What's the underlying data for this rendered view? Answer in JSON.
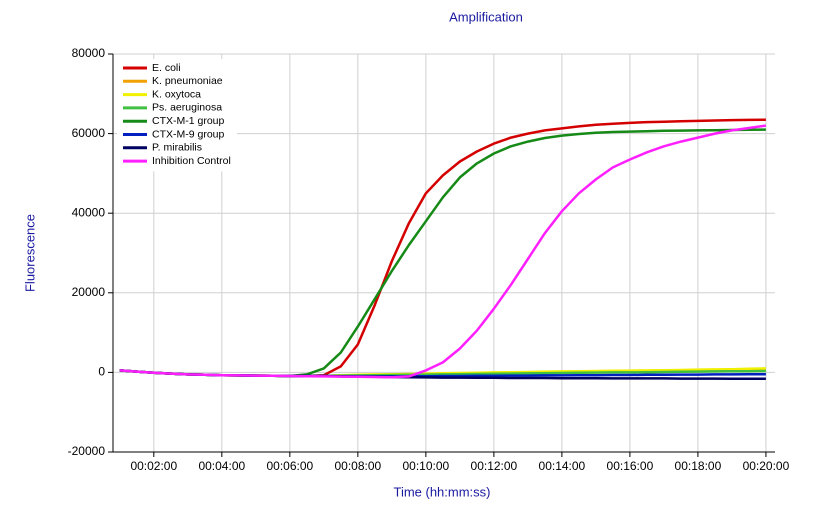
{
  "chart_data": {
    "type": "line",
    "title": "Amplification",
    "x_label": "Time (hh:mm:ss)",
    "y_label": "Fluorescence",
    "x": [
      60,
      90,
      120,
      150,
      180,
      210,
      240,
      270,
      300,
      330,
      360,
      390,
      420,
      450,
      480,
      510,
      540,
      570,
      600,
      630,
      660,
      690,
      720,
      750,
      780,
      810,
      840,
      870,
      900,
      930,
      960,
      990,
      1020,
      1050,
      1080,
      1110,
      1140,
      1170,
      1200
    ],
    "xlim": [
      48,
      1216
    ],
    "xticks": [
      {
        "value": 120,
        "label": "00:02:00"
      },
      {
        "value": 240,
        "label": "00:04:00"
      },
      {
        "value": 360,
        "label": "00:06:00"
      },
      {
        "value": 480,
        "label": "00:08:00"
      },
      {
        "value": 600,
        "label": "00:10:00"
      },
      {
        "value": 720,
        "label": "00:12:00"
      },
      {
        "value": 840,
        "label": "00:14:00"
      },
      {
        "value": 960,
        "label": "00:16:00"
      },
      {
        "value": 1080,
        "label": "00:18:00"
      },
      {
        "value": 1200,
        "label": "00:20:00"
      }
    ],
    "ylim": [
      -20000,
      80000
    ],
    "yticks": [
      -20000,
      0,
      20000,
      40000,
      60000,
      80000
    ],
    "grid": true,
    "legend": "upper-left",
    "series": [
      {
        "name": "E. coli",
        "color": "#d40000",
        "values": [
          500,
          200,
          -100,
          -300,
          -500,
          -600,
          -700,
          -750,
          -800,
          -850,
          -900,
          -900,
          -700,
          1500,
          7000,
          17000,
          28000,
          37500,
          45000,
          49500,
          53000,
          55500,
          57500,
          59000,
          60000,
          60800,
          61300,
          61800,
          62200,
          62500,
          62700,
          62900,
          63000,
          63100,
          63200,
          63300,
          63400,
          63450,
          63500
        ]
      },
      {
        "name": "K. pneumoniae",
        "color": "#f0a000",
        "values": [
          500,
          200,
          -100,
          -300,
          -500,
          -600,
          -700,
          -750,
          -800,
          -850,
          -900,
          -900,
          -900,
          -750,
          -700,
          -650,
          -600,
          -550,
          -500,
          -450,
          -400,
          -350,
          -300,
          -250,
          -200,
          -150,
          -100,
          -50,
          0,
          50,
          100,
          150,
          200,
          250,
          300,
          350,
          400,
          450,
          500
        ]
      },
      {
        "name": "K. oxytoca",
        "color": "#f0f000",
        "values": [
          500,
          200,
          -100,
          -300,
          -500,
          -600,
          -700,
          -750,
          -800,
          -850,
          -900,
          -900,
          -900,
          -700,
          -600,
          -500,
          -450,
          -400,
          -300,
          -200,
          -150,
          -100,
          0,
          50,
          100,
          200,
          250,
          300,
          350,
          400,
          450,
          500,
          550,
          600,
          700,
          750,
          800,
          900,
          1000
        ]
      },
      {
        "name": "Ps. aeruginosa",
        "color": "#40c040",
        "values": [
          500,
          200,
          -100,
          -300,
          -500,
          -600,
          -700,
          -750,
          -800,
          -850,
          -900,
          -900,
          -900,
          -800,
          -750,
          -700,
          -650,
          -600,
          -550,
          -500,
          -450,
          -400,
          -350,
          -300,
          -250,
          -200,
          -150,
          -100,
          -50,
          0,
          0,
          50,
          100,
          150,
          200,
          250,
          300,
          300,
          350
        ]
      },
      {
        "name": "CTX-M-1 group",
        "color": "#168a16",
        "values": [
          500,
          200,
          -100,
          -300,
          -500,
          -600,
          -700,
          -750,
          -800,
          -850,
          -900,
          -500,
          1000,
          5000,
          11500,
          18500,
          25500,
          32000,
          38000,
          44000,
          49000,
          52500,
          55000,
          56800,
          58000,
          58900,
          59500,
          59900,
          60200,
          60400,
          60500,
          60600,
          60700,
          60750,
          60800,
          60850,
          60900,
          60950,
          61000
        ]
      },
      {
        "name": "CTX-M-9 group",
        "color": "#0020c0",
        "values": [
          500,
          200,
          -100,
          -300,
          -500,
          -600,
          -700,
          -750,
          -800,
          -850,
          -900,
          -900,
          -900,
          -950,
          -1000,
          -1000,
          -1000,
          -950,
          -950,
          -900,
          -900,
          -850,
          -850,
          -800,
          -800,
          -750,
          -750,
          -700,
          -700,
          -650,
          -650,
          -600,
          -600,
          -550,
          -550,
          -500,
          -500,
          -450,
          -450
        ]
      },
      {
        "name": "P. mirabilis",
        "color": "#000060",
        "values": [
          500,
          200,
          -100,
          -300,
          -500,
          -600,
          -700,
          -750,
          -800,
          -850,
          -900,
          -900,
          -900,
          -1000,
          -1050,
          -1100,
          -1150,
          -1200,
          -1250,
          -1300,
          -1300,
          -1350,
          -1350,
          -1400,
          -1400,
          -1400,
          -1450,
          -1450,
          -1450,
          -1500,
          -1500,
          -1500,
          -1500,
          -1550,
          -1550,
          -1550,
          -1600,
          -1600,
          -1600
        ]
      },
      {
        "name": "Inhibition Control",
        "color": "#ff20ff",
        "values": [
          500,
          200,
          -100,
          -300,
          -500,
          -600,
          -700,
          -750,
          -800,
          -850,
          -900,
          -950,
          -1000,
          -1050,
          -1100,
          -1150,
          -1200,
          -1000,
          500,
          2500,
          6000,
          10500,
          16000,
          22000,
          28500,
          35000,
          40500,
          45000,
          48500,
          51500,
          53500,
          55300,
          56800,
          58000,
          59000,
          60000,
          60800,
          61400,
          62000
        ]
      }
    ]
  }
}
